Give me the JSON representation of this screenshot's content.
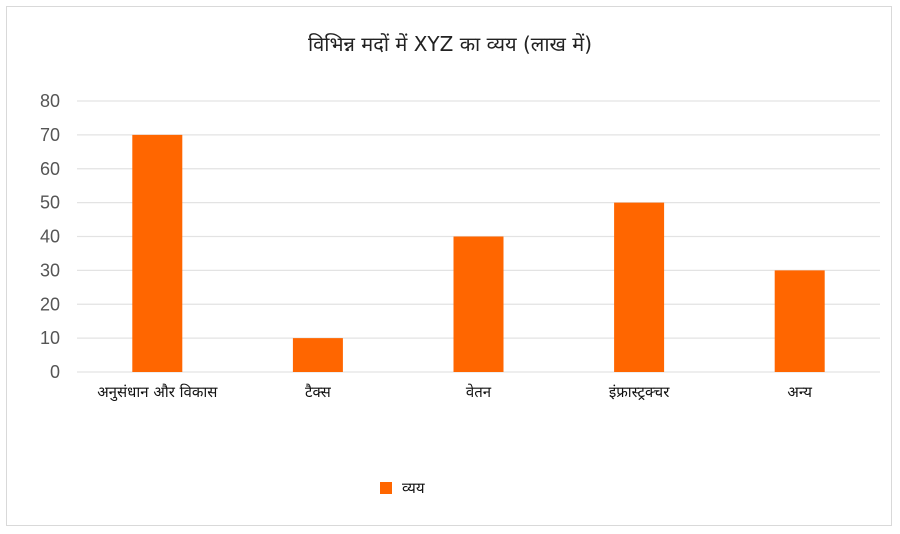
{
  "chart_data": {
    "type": "bar",
    "title": "विभिन्न मदों में XYZ का व्यय (लाख में)",
    "categories": [
      "अनुसंधान और विकास",
      "टैक्स",
      "वेतन",
      "इंफ्रास्ट्रक्चर",
      "अन्य"
    ],
    "series": [
      {
        "name": "व्यय",
        "values": [
          70,
          10,
          40,
          50,
          30
        ],
        "color": "#ff6600"
      }
    ],
    "ylim": [
      0,
      80
    ],
    "yticks": [
      0,
      10,
      20,
      30,
      40,
      50,
      60,
      70,
      80
    ],
    "grid": true,
    "legend_position": "bottom"
  }
}
